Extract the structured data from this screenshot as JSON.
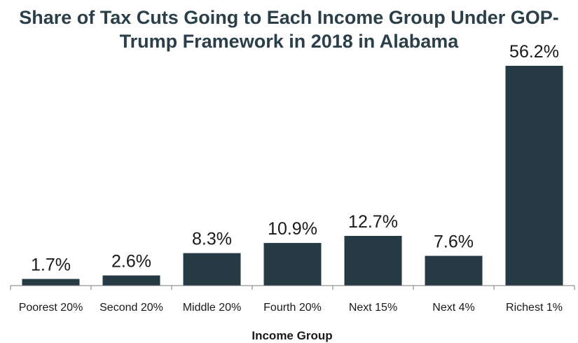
{
  "chart_data": {
    "type": "bar",
    "title_lines": [
      "Share of Tax Cuts Going to Each Income Group Under GOP-",
      "Trump Framework in 2018 in Alabama"
    ],
    "xlabel": "Income Group",
    "ylabel": "",
    "categories": [
      "Poorest 20%",
      "Second 20%",
      "Middle 20%",
      "Fourth 20%",
      "Next 15%",
      "Next 4%",
      "Richest 1%"
    ],
    "values": [
      1.7,
      2.6,
      8.3,
      10.9,
      12.7,
      7.6,
      56.2
    ],
    "value_labels": [
      "1.7%",
      "2.6%",
      "8.3%",
      "10.9%",
      "12.7%",
      "7.6%",
      "56.2%"
    ],
    "ylim": [
      0,
      56.2
    ],
    "grid": false,
    "bar_color": "#263a44"
  }
}
